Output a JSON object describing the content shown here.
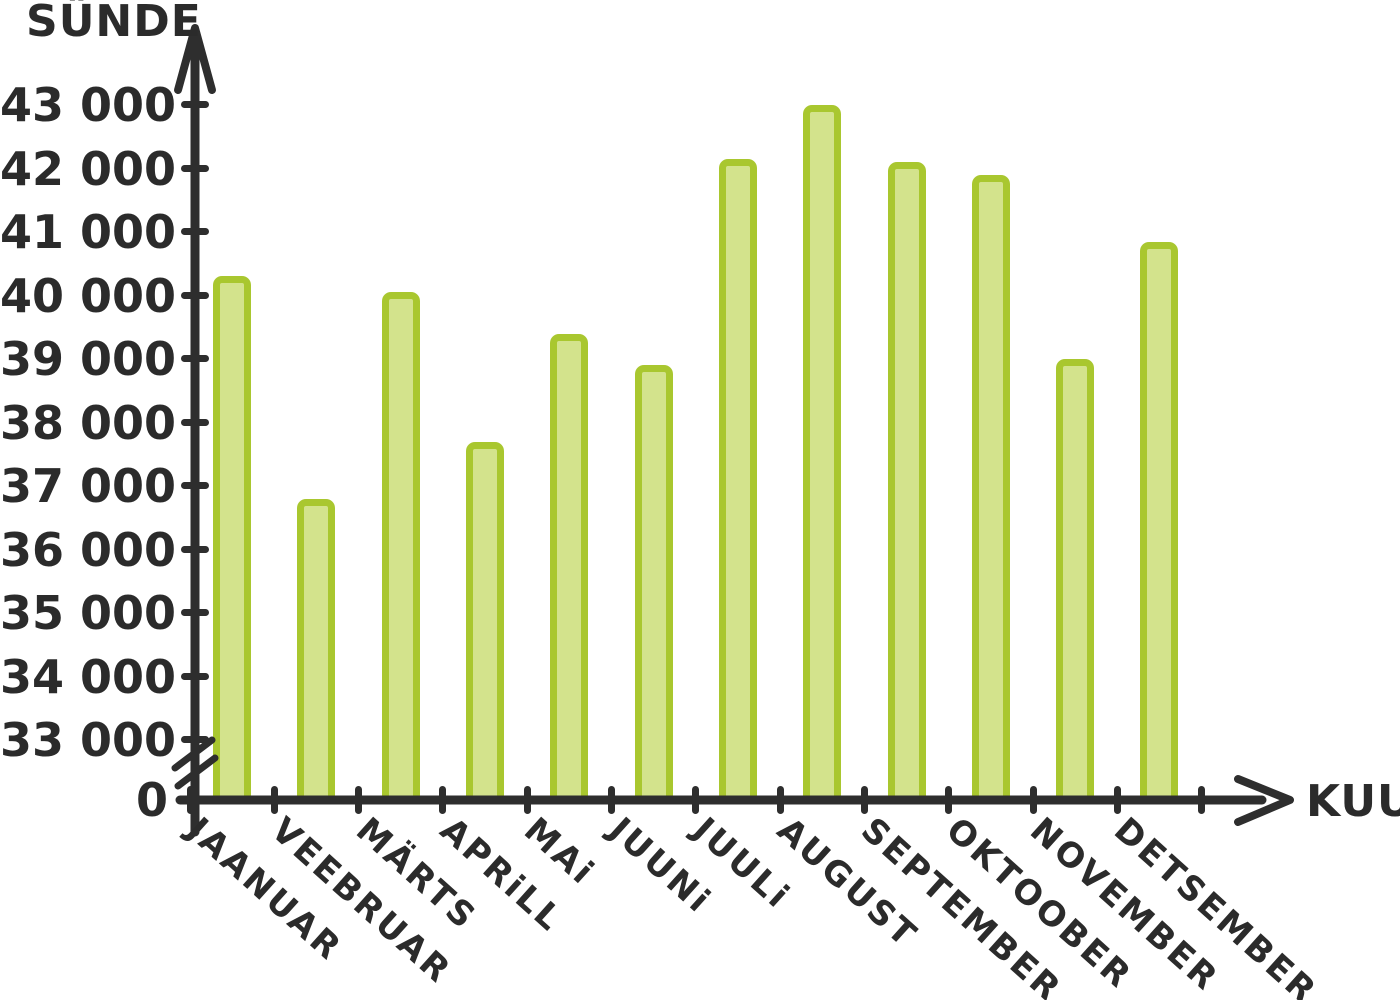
{
  "chart_data": {
    "type": "bar",
    "title": "",
    "ylabel": "SÜNDE",
    "xlabel": "KUU",
    "categories": [
      "JAANUAR",
      "VEEBRUAR",
      "MÄRTS",
      "APRiLL",
      "MAi",
      "JUUNi",
      "JUULi",
      "AUGUST",
      "SEPTEMBER",
      "OKTOOBER",
      "NOVEMBER",
      "DETSEMBER"
    ],
    "values": [
      40300,
      36800,
      40050,
      37700,
      39400,
      38900,
      42150,
      43000,
      42100,
      41900,
      39000,
      40850
    ],
    "y_axis": {
      "tick_labels": [
        "43 000",
        "42 000",
        "41 000",
        "40 000",
        "39 000",
        "38 000",
        "37 000",
        "36 000",
        "35 000",
        "34 000",
        "33 000"
      ],
      "tick_values": [
        43000,
        42000,
        41000,
        40000,
        39000,
        38000,
        37000,
        36000,
        35000,
        34000,
        33000
      ],
      "origin_label": "0",
      "axis_break": true
    },
    "ylim": [
      33000,
      43000
    ],
    "grid": false,
    "legend": false,
    "style": "hand-drawn",
    "colors": {
      "bar_fill": "#d3e38c",
      "bar_stroke": "#a9c72f",
      "axis": "#2e2e2e",
      "text": "#2b2b2b"
    }
  }
}
